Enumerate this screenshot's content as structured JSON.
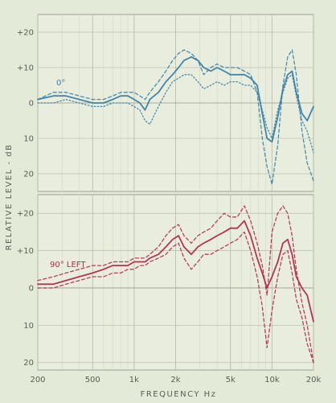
{
  "chart_data": {
    "type": "line",
    "xlabel": "FREQUENCY  Hz",
    "ylabel": "RELATIVE LEVEL - dB",
    "x_scale": "log",
    "xlim": [
      200,
      20000
    ],
    "x_ticks": [
      200,
      500,
      1000,
      2000,
      5000,
      10000,
      20000
    ],
    "x_tick_labels": [
      "200",
      "500",
      "1k",
      "2k",
      "5k",
      "10k",
      "20k"
    ],
    "grid": true,
    "panels": [
      {
        "annotation": "0°",
        "color": "#3b7fa6",
        "ylim": [
          -25,
          25
        ],
        "y_ticks": [
          20,
          10,
          0,
          -10,
          -20
        ],
        "y_tick_labels": [
          "+20",
          "+10",
          "0",
          "10",
          "20"
        ],
        "series": [
          {
            "style": "solid",
            "x": [
              200,
              260,
              320,
              400,
              500,
              600,
              700,
              800,
              900,
              1000,
              1100,
              1200,
              1300,
              1500,
              1700,
              1900,
              2100,
              2300,
              2600,
              2900,
              3200,
              3600,
              4000,
              4500,
              5000,
              5600,
              6300,
              7000,
              7800,
              8500,
              9200,
              10000,
              11000,
              12000,
              13000,
              14000,
              15000,
              16500,
              18000,
              20000
            ],
            "y": [
              1,
              2,
              2,
              1,
              0,
              0,
              1,
              2,
              2,
              1,
              0,
              -2,
              1,
              3,
              6,
              8,
              10,
              12,
              13,
              12,
              10,
              9,
              10,
              9,
              8,
              8,
              8,
              7,
              5,
              -3,
              -10,
              -11,
              -4,
              4,
              8,
              9,
              3,
              -3,
              -5,
              -1
            ]
          },
          {
            "style": "dashed",
            "x": [
              200,
              260,
              320,
              400,
              500,
              600,
              700,
              800,
              900,
              1000,
              1100,
              1200,
              1300,
              1500,
              1700,
              1900,
              2100,
              2300,
              2600,
              2900,
              3200,
              3600,
              4000,
              4500,
              5000,
              5600,
              6300,
              7000,
              7800,
              8500,
              9200,
              10000,
              11000,
              12000,
              13000,
              14000,
              15000,
              16500,
              18000,
              20000
            ],
            "y": [
              1,
              3,
              3,
              2,
              1,
              1,
              2,
              3,
              3,
              3,
              2,
              1,
              3,
              6,
              9,
              12,
              14,
              15,
              14,
              12,
              8,
              10,
              11,
              10,
              10,
              10,
              9,
              8,
              3,
              -10,
              -18,
              -23,
              -12,
              5,
              13,
              15,
              8,
              -8,
              -17,
              -22
            ]
          },
          {
            "style": "dotted",
            "x": [
              200,
              260,
              320,
              400,
              500,
              600,
              700,
              800,
              900,
              1000,
              1100,
              1200,
              1300,
              1500,
              1700,
              1900,
              2100,
              2300,
              2600,
              2900,
              3200,
              3600,
              4000,
              4500,
              5000,
              5600,
              6300,
              7000,
              7800,
              8500,
              9200,
              10000,
              11000,
              12000,
              13000,
              14000,
              15000,
              16500,
              18000,
              20000
            ],
            "y": [
              0,
              0,
              1,
              0,
              -1,
              -1,
              0,
              0,
              0,
              -1,
              -2,
              -5,
              -6,
              -1,
              3,
              6,
              7,
              8,
              8,
              6,
              4,
              5,
              6,
              5,
              6,
              6,
              5,
              5,
              3,
              -2,
              -7,
              -10,
              -2,
              3,
              7,
              8,
              2,
              -5,
              -8,
              -14
            ]
          }
        ]
      },
      {
        "annotation": "90° LEFT",
        "color": "#b22a4e",
        "ylim": [
          -22,
          25
        ],
        "y_ticks": [
          20,
          10,
          0,
          -10,
          -20
        ],
        "y_tick_labels": [
          "+20",
          "+10",
          "0",
          "10",
          "20"
        ],
        "series": [
          {
            "style": "solid",
            "x": [
              200,
              260,
              320,
              400,
              500,
              600,
              700,
              800,
              900,
              1000,
              1100,
              1200,
              1300,
              1500,
              1700,
              1900,
              2100,
              2300,
              2600,
              2900,
              3200,
              3600,
              4000,
              4500,
              5000,
              5600,
              6300,
              7000,
              7800,
              8500,
              9200,
              10000,
              11000,
              12000,
              13000,
              14000,
              15000,
              16500,
              18000,
              20000
            ],
            "y": [
              1,
              1,
              2,
              3,
              4,
              5,
              6,
              6,
              6,
              7,
              7,
              7,
              8,
              9,
              11,
              13,
              14,
              11,
              9,
              11,
              12,
              13,
              14,
              15,
              16,
              16,
              18,
              14,
              8,
              4,
              0,
              3,
              7,
              12,
              13,
              9,
              3,
              0,
              -2,
              -9
            ]
          },
          {
            "style": "dashed",
            "x": [
              200,
              260,
              320,
              400,
              500,
              600,
              700,
              800,
              900,
              1000,
              1100,
              1200,
              1300,
              1500,
              1700,
              1900,
              2100,
              2300,
              2600,
              2900,
              3200,
              3600,
              4000,
              4500,
              5000,
              5600,
              6300,
              7000,
              7800,
              8500,
              9200,
              10000,
              11000,
              12000,
              13000,
              14000,
              15000,
              16500,
              18000,
              20000
            ],
            "y": [
              2,
              3,
              4,
              5,
              6,
              6,
              7,
              7,
              7,
              8,
              8,
              8,
              9,
              11,
              14,
              16,
              17,
              14,
              12,
              14,
              15,
              16,
              18,
              20,
              19,
              19,
              22,
              18,
              12,
              6,
              -2,
              15,
              20,
              22,
              20,
              14,
              5,
              -4,
              -10,
              -20
            ]
          },
          {
            "style": "dashed",
            "x": [
              200,
              260,
              320,
              400,
              500,
              600,
              700,
              800,
              900,
              1000,
              1100,
              1200,
              1300,
              1500,
              1700,
              1900,
              2100,
              2300,
              2600,
              2900,
              3200,
              3600,
              4000,
              4500,
              5000,
              5600,
              6300,
              7000,
              7800,
              8500,
              9200,
              10000,
              11000,
              12000,
              13000,
              14000,
              15000,
              16500,
              18000,
              20000
            ],
            "y": [
              0,
              0,
              1,
              2,
              3,
              3,
              4,
              4,
              5,
              5,
              6,
              6,
              7,
              8,
              9,
              11,
              12,
              8,
              5,
              7,
              9,
              9,
              10,
              11,
              12,
              13,
              15,
              10,
              3,
              -5,
              -16,
              -6,
              3,
              9,
              10,
              4,
              -3,
              -8,
              -15,
              -20
            ]
          }
        ]
      }
    ]
  }
}
